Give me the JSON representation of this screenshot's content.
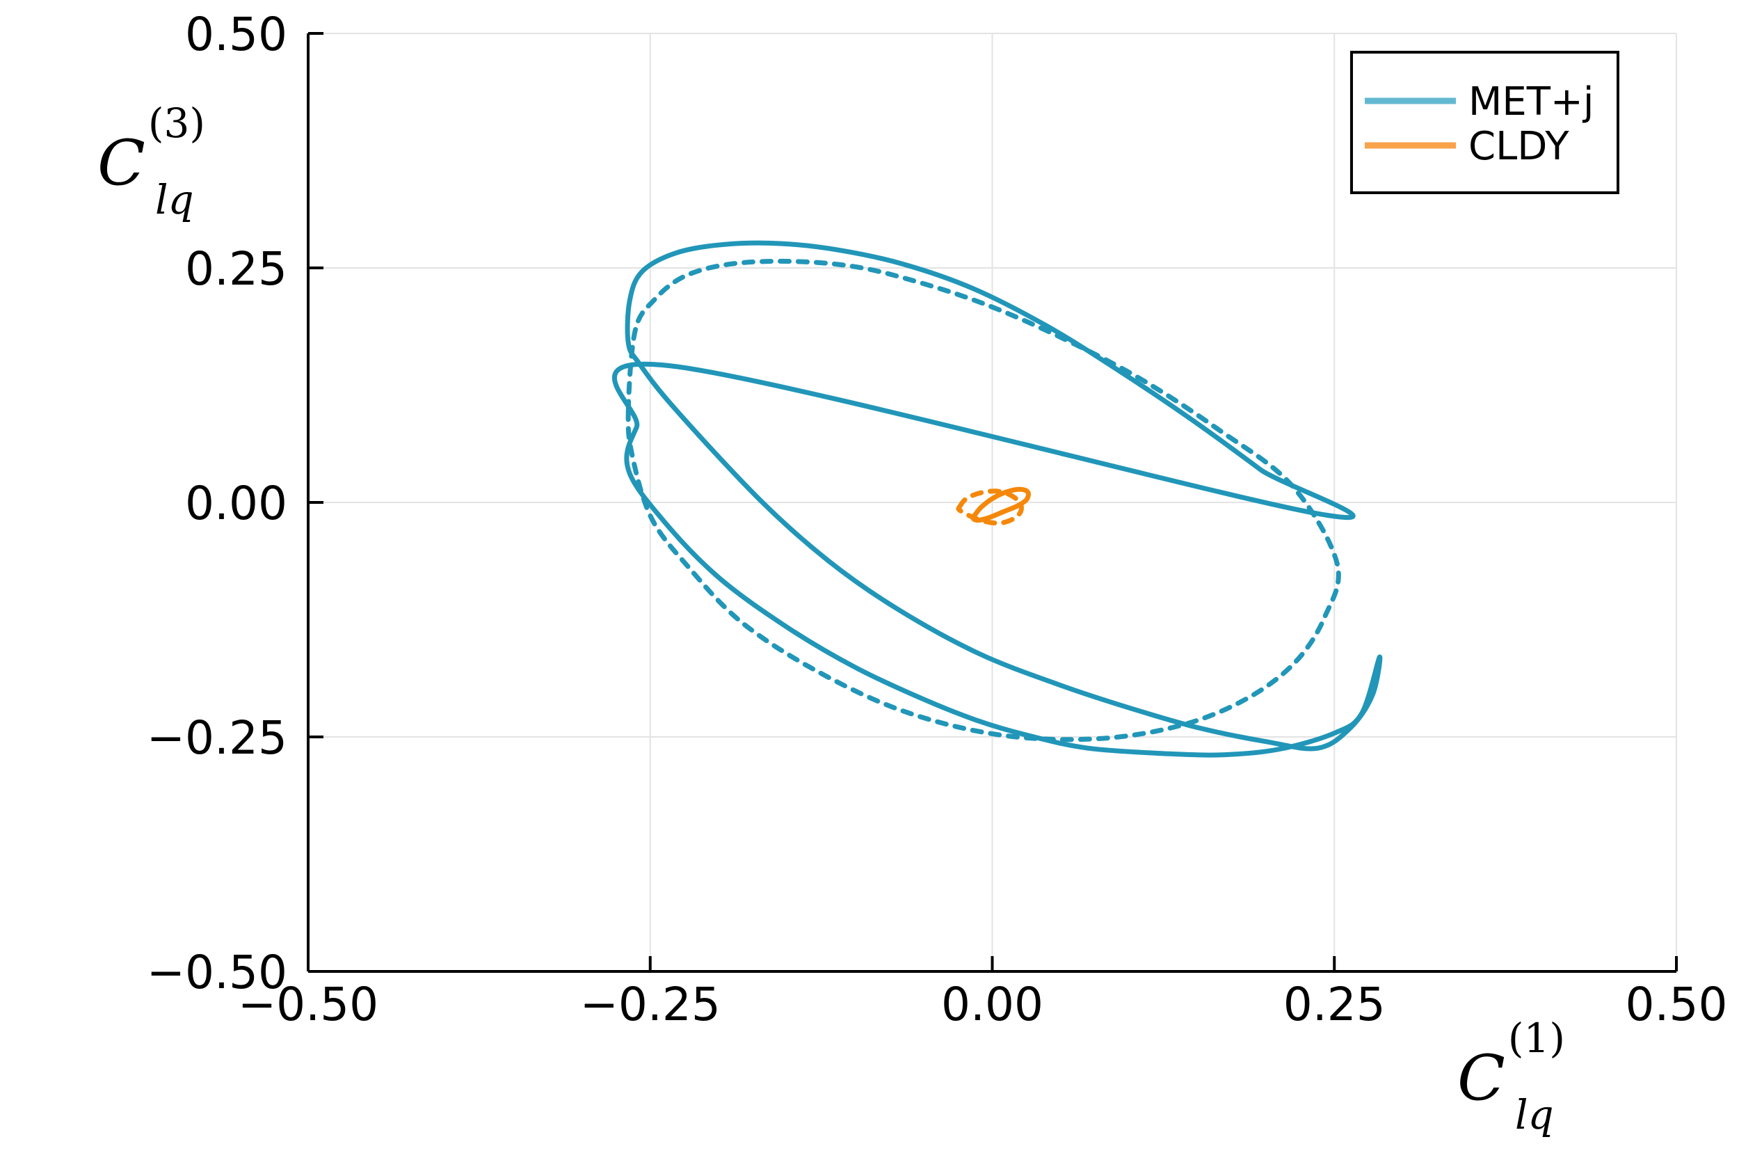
{
  "chart_data": {
    "type": "line",
    "title": "",
    "xlabel": {
      "base": "C",
      "sub": "lq",
      "sup": "(1)"
    },
    "ylabel": {
      "base": "C",
      "sub": "lq",
      "sup": "(3)"
    },
    "xlim": [
      -0.5,
      0.5
    ],
    "ylim": [
      -0.5,
      0.5
    ],
    "xticks": [
      -0.5,
      -0.25,
      0.0,
      0.25,
      0.5
    ],
    "yticks": [
      -0.5,
      -0.25,
      0.0,
      0.25,
      0.5
    ],
    "xtick_labels": [
      "−0.50",
      "−0.25",
      "0.00",
      "0.25",
      "0.50"
    ],
    "ytick_labels": [
      "−0.50",
      "−0.25",
      "0.00",
      "0.25",
      "0.50"
    ],
    "grid": true,
    "legend_position": "top-right",
    "series": [
      {
        "name": "MET+j",
        "color": "#2196b8",
        "style": "solid",
        "x": [
          0.238,
          0.196,
          0.146,
          0.093,
          0.04,
          -0.014,
          -0.065,
          -0.112,
          -0.155,
          -0.196,
          -0.231,
          -0.256,
          -0.265,
          -0.266,
          -0.258,
          -0.232,
          -0.17,
          -0.12,
          -0.07,
          -0.01,
          0.05,
          0.1,
          0.15,
          0.2,
          0.238,
          0.262,
          0.278,
          0.283,
          0.27,
          0.25,
          0.21,
          0.17,
          0.13,
          0.07,
          0.025,
          -0.01,
          -0.05,
          -0.1,
          -0.15,
          -0.2,
          -0.24,
          -0.266,
          -0.26,
          -0.232
        ],
        "y": [
          -0.012,
          0.035,
          0.088,
          0.14,
          0.188,
          0.228,
          0.254,
          0.269,
          0.276,
          0.275,
          0.266,
          0.246,
          0.215,
          0.17,
          0.148,
          0.1,
          0.003,
          -0.062,
          -0.113,
          -0.161,
          -0.195,
          -0.219,
          -0.24,
          -0.255,
          -0.262,
          -0.24,
          -0.205,
          -0.165,
          -0.225,
          -0.246,
          -0.263,
          -0.269,
          -0.268,
          -0.262,
          -0.248,
          -0.233,
          -0.21,
          -0.176,
          -0.133,
          -0.08,
          -0.02,
          0.035,
          0.08,
          0.145
        ],
        "note": ""
      },
      {
        "name": "",
        "color": "#2196b8",
        "style": "dashed",
        "x": [
          -0.266,
          -0.261,
          -0.247,
          -0.225,
          -0.192,
          -0.147,
          -0.099,
          -0.052,
          -0.003,
          0.05,
          0.108,
          0.165,
          0.219,
          0.252,
          0.243,
          0.221,
          0.185,
          0.137,
          0.076,
          0.006,
          -0.064,
          -0.128,
          -0.183,
          -0.222,
          -0.249,
          -0.263
        ],
        "y": [
          0.098,
          0.183,
          0.216,
          0.241,
          0.254,
          0.257,
          0.251,
          0.234,
          0.21,
          0.176,
          0.132,
          0.078,
          0.018,
          -0.065,
          -0.122,
          -0.171,
          -0.21,
          -0.238,
          -0.252,
          -0.248,
          -0.223,
          -0.18,
          -0.128,
          -0.069,
          -0.017,
          0.049
        ]
      },
      {
        "name": "CLDY",
        "color": "#f5880a",
        "style": "solid",
        "x": [
          -0.012,
          -0.008,
          0.0,
          0.01,
          0.02,
          0.026,
          0.025,
          0.018,
          0.008,
          -0.002,
          -0.01,
          -0.014
        ],
        "y": [
          -0.012,
          -0.005,
          0.004,
          0.011,
          0.014,
          0.011,
          0.003,
          -0.004,
          -0.01,
          -0.016,
          -0.019,
          -0.017
        ]
      },
      {
        "name": "",
        "color": "#f5880a",
        "style": "dashed",
        "x": [
          -0.024,
          -0.019,
          -0.009,
          0.003,
          0.013,
          0.02,
          0.021,
          0.016,
          0.006,
          -0.006,
          -0.017,
          -0.024
        ],
        "y": [
          -0.005,
          0.004,
          0.01,
          0.012,
          0.008,
          0.0,
          -0.009,
          -0.017,
          -0.022,
          -0.02,
          -0.014,
          -0.008
        ]
      }
    ]
  }
}
